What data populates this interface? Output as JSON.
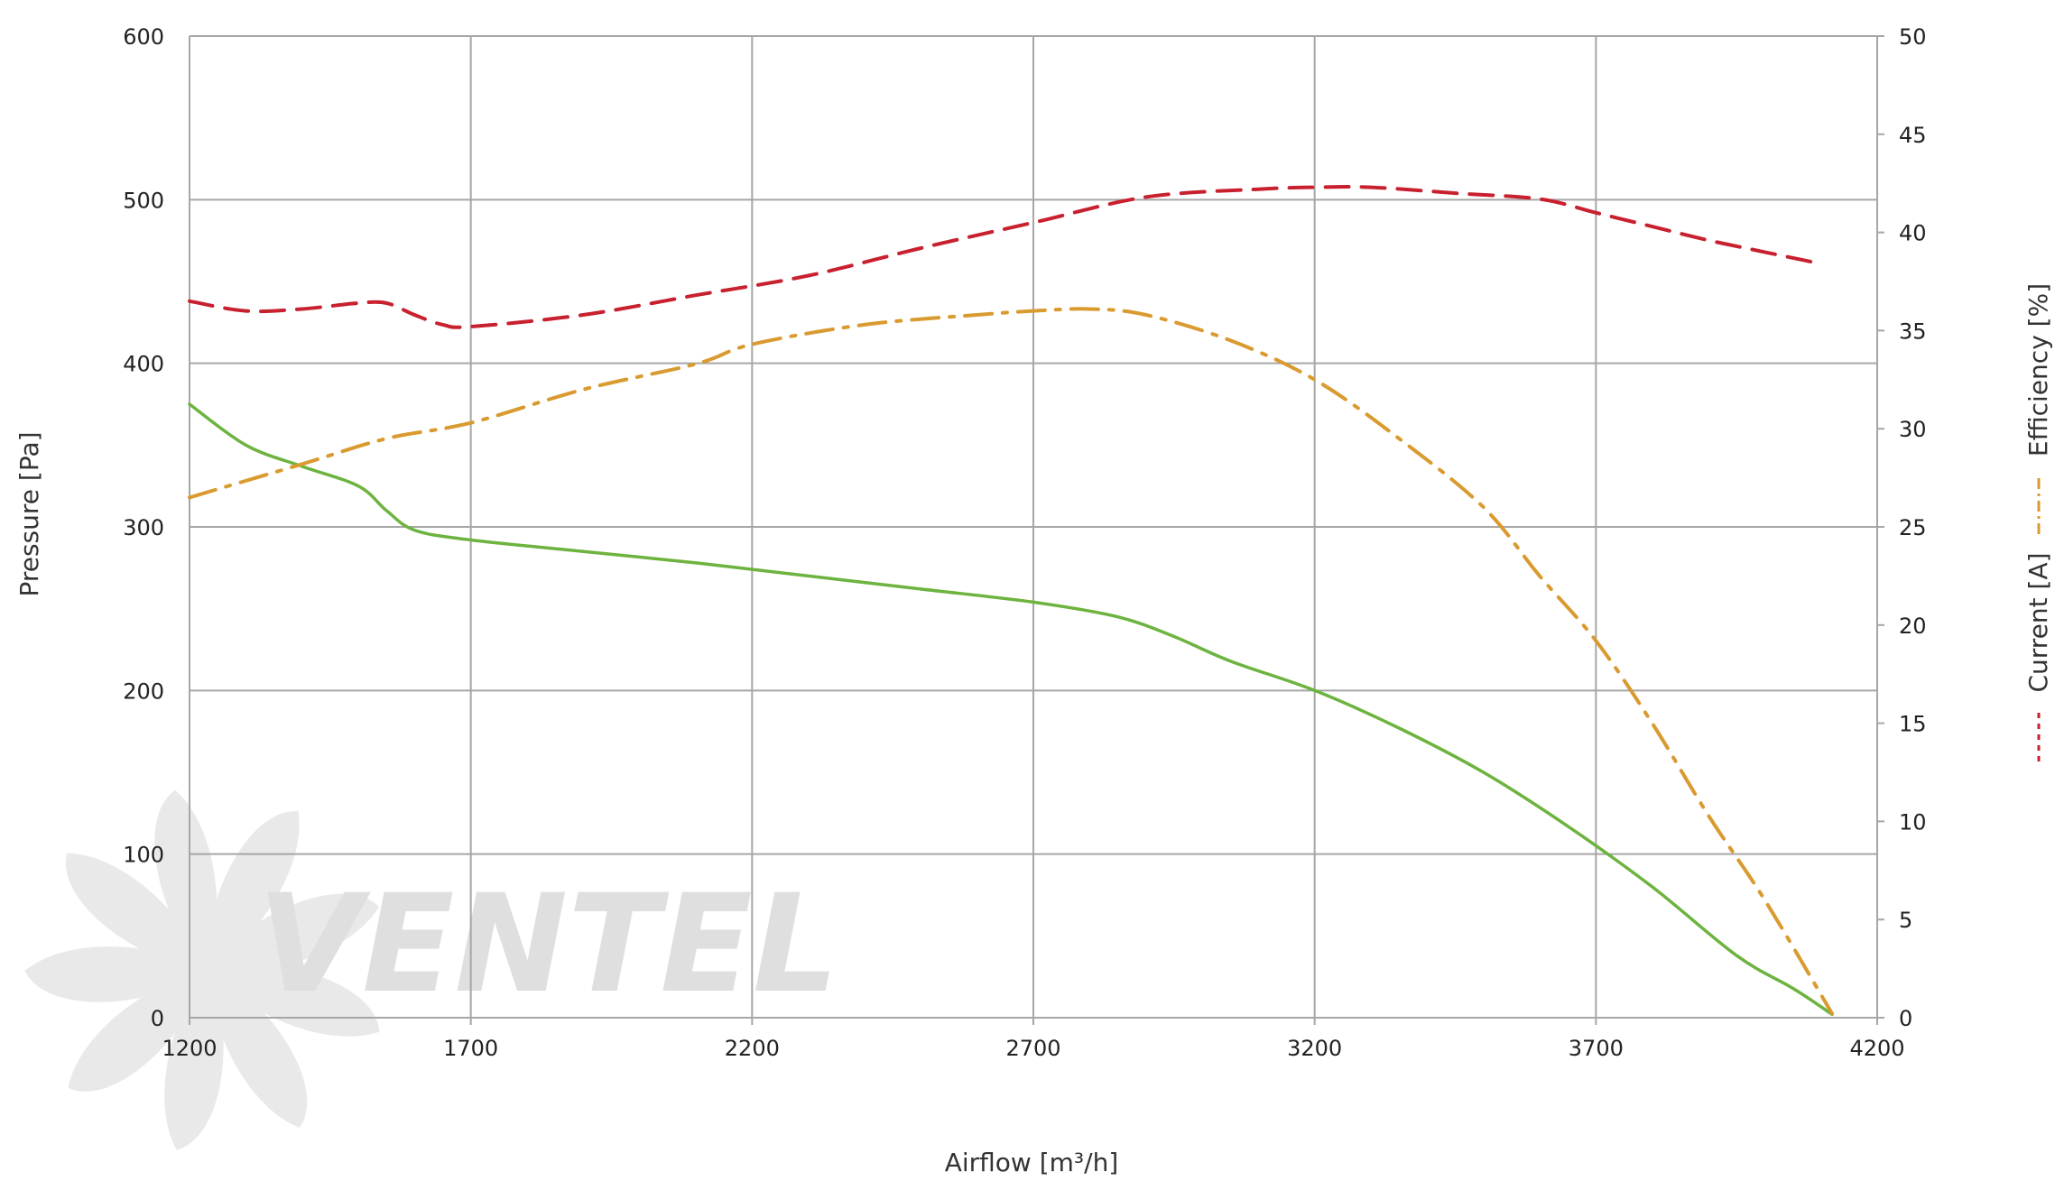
{
  "chart_data": {
    "type": "line",
    "xlabel": "Airflow [m³/h]",
    "ylabel_left": "Pressure [Pa]",
    "ylabel_right_current": "Current [A]",
    "ylabel_right_efficiency": "Efficiency [%]",
    "x_ticks": [
      "1200",
      "1700",
      "2200",
      "2700",
      "3200",
      "3700",
      "4200"
    ],
    "y_left_ticks": [
      "0",
      "100",
      "200",
      "300",
      "400",
      "500",
      "600"
    ],
    "y_right_ticks": [
      "0",
      "5",
      "10",
      "15",
      "20",
      "25",
      "30",
      "35",
      "40",
      "45",
      "50"
    ],
    "xlim": [
      1200,
      4200
    ],
    "ylim_left": [
      0,
      600
    ],
    "ylim_right": [
      0,
      50
    ],
    "grid": true,
    "watermark": "VENTEL",
    "series": [
      {
        "key": "pressure",
        "axis": "left",
        "color": "#6db33f",
        "style": "solid",
        "points": [
          [
            1200,
            375
          ],
          [
            1300,
            350
          ],
          [
            1400,
            337
          ],
          [
            1500,
            325
          ],
          [
            1550,
            310
          ],
          [
            1600,
            298
          ],
          [
            1700,
            292
          ],
          [
            1900,
            285
          ],
          [
            2100,
            278
          ],
          [
            2300,
            270
          ],
          [
            2500,
            262
          ],
          [
            2700,
            254
          ],
          [
            2850,
            245
          ],
          [
            2950,
            233
          ],
          [
            3050,
            218
          ],
          [
            3200,
            200
          ],
          [
            3350,
            177
          ],
          [
            3500,
            150
          ],
          [
            3650,
            117
          ],
          [
            3800,
            80
          ],
          [
            3950,
            38
          ],
          [
            4050,
            18
          ],
          [
            4120,
            2
          ]
        ]
      },
      {
        "key": "efficiency",
        "axis": "right",
        "color": "#d99a30",
        "style": "dashdot",
        "points": [
          [
            1200,
            26.5
          ],
          [
            1400,
            28.2
          ],
          [
            1550,
            29.5
          ],
          [
            1700,
            30.3
          ],
          [
            1900,
            32.0
          ],
          [
            2100,
            33.3
          ],
          [
            2200,
            34.3
          ],
          [
            2400,
            35.3
          ],
          [
            2600,
            35.8
          ],
          [
            2700,
            36.0
          ],
          [
            2800,
            36.1
          ],
          [
            2900,
            35.8
          ],
          [
            3050,
            34.5
          ],
          [
            3200,
            32.5
          ],
          [
            3350,
            29.5
          ],
          [
            3500,
            26.0
          ],
          [
            3600,
            22.5
          ],
          [
            3700,
            19.2
          ],
          [
            3800,
            15.0
          ],
          [
            3900,
            10.3
          ],
          [
            4000,
            6.0
          ],
          [
            4120,
            0.2
          ]
        ]
      },
      {
        "key": "current",
        "axis": "right",
        "color": "#c8202f",
        "style": "dashed",
        "points": [
          [
            1200,
            36.5
          ],
          [
            1300,
            36.0
          ],
          [
            1400,
            36.1
          ],
          [
            1500,
            36.4
          ],
          [
            1550,
            36.4
          ],
          [
            1600,
            35.8
          ],
          [
            1650,
            35.3
          ],
          [
            1700,
            35.2
          ],
          [
            1900,
            35.8
          ],
          [
            2100,
            36.8
          ],
          [
            2300,
            37.8
          ],
          [
            2500,
            39.2
          ],
          [
            2700,
            40.5
          ],
          [
            2900,
            41.8
          ],
          [
            3100,
            42.2
          ],
          [
            3200,
            42.3
          ],
          [
            3300,
            42.3
          ],
          [
            3450,
            42.0
          ],
          [
            3600,
            41.7
          ],
          [
            3700,
            41.0
          ],
          [
            3800,
            40.3
          ],
          [
            3900,
            39.6
          ],
          [
            4000,
            39.0
          ],
          [
            4100,
            38.4
          ]
        ]
      }
    ]
  }
}
